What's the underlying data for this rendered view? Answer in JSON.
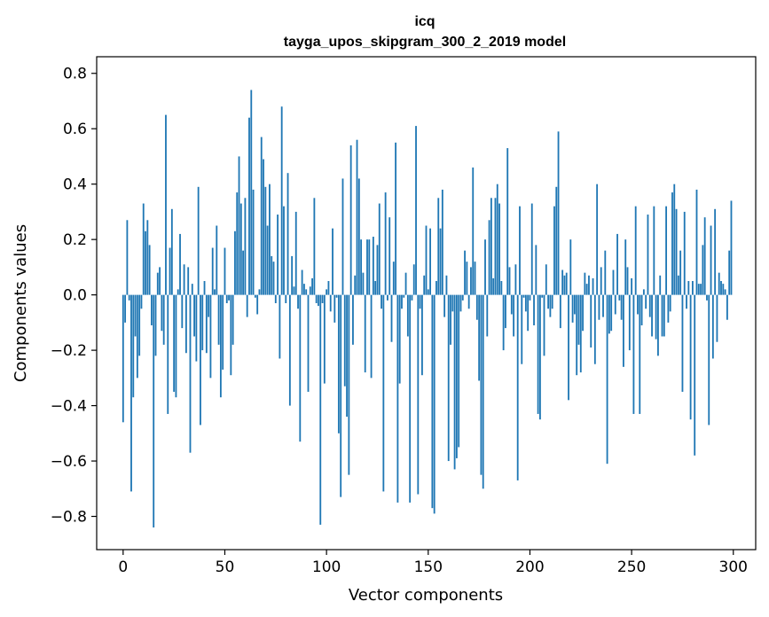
{
  "chart_data": {
    "type": "bar",
    "title": "icq",
    "subtitle": "tayga_upos_skipgram_300_2_2019 model",
    "xlabel": "Vector components",
    "ylabel": "Components values",
    "xlim": [
      -13,
      311
    ],
    "ylim": [
      -0.92,
      0.86
    ],
    "xticks": [
      0,
      50,
      100,
      150,
      200,
      250,
      300
    ],
    "xtick_labels": [
      "0",
      "50",
      "100",
      "150",
      "200",
      "250",
      "300"
    ],
    "yticks": [
      -0.8,
      -0.6,
      -0.4,
      -0.2,
      0.0,
      0.2,
      0.4,
      0.6,
      0.8
    ],
    "ytick_labels": [
      "−0.8",
      "−0.6",
      "−0.4",
      "−0.2",
      "0.0",
      "0.2",
      "0.4",
      "0.6",
      "0.8"
    ],
    "bar_color": "#1f77b4",
    "values": [
      -0.46,
      -0.1,
      0.27,
      -0.02,
      -0.71,
      -0.37,
      -0.15,
      -0.3,
      -0.22,
      -0.05,
      0.33,
      0.23,
      0.27,
      0.18,
      -0.11,
      -0.84,
      -0.22,
      0.08,
      0.1,
      -0.13,
      -0.18,
      0.65,
      -0.43,
      0.17,
      0.31,
      -0.35,
      -0.37,
      0.02,
      0.22,
      -0.12,
      0.11,
      -0.21,
      0.1,
      -0.57,
      0.04,
      -0.15,
      -0.24,
      0.39,
      -0.47,
      -0.2,
      0.05,
      -0.21,
      -0.08,
      -0.3,
      0.17,
      0.02,
      0.25,
      -0.18,
      -0.37,
      -0.27,
      0.17,
      -0.03,
      -0.02,
      -0.29,
      -0.18,
      0.23,
      0.37,
      0.5,
      0.33,
      0.16,
      0.35,
      -0.08,
      0.64,
      0.74,
      0.38,
      -0.01,
      -0.07,
      0.02,
      0.57,
      0.49,
      0.39,
      0.25,
      0.4,
      0.14,
      0.12,
      -0.03,
      0.29,
      -0.23,
      0.68,
      0.32,
      -0.03,
      0.44,
      -0.4,
      0.14,
      0.03,
      0.3,
      -0.05,
      -0.53,
      0.09,
      0.04,
      0.02,
      -0.35,
      0.03,
      0.06,
      0.35,
      -0.03,
      -0.04,
      -0.83,
      -0.03,
      -0.32,
      0.02,
      0.05,
      -0.06,
      0.24,
      -0.1,
      -0.01,
      -0.5,
      -0.73,
      0.42,
      -0.33,
      -0.44,
      -0.65,
      0.54,
      -0.18,
      0.07,
      0.56,
      0.42,
      0.2,
      0.08,
      -0.28,
      0.2,
      0.2,
      -0.3,
      0.21,
      0.05,
      0.18,
      0.33,
      -0.05,
      -0.71,
      0.37,
      -0.02,
      0.28,
      -0.17,
      0.12,
      0.55,
      -0.75,
      -0.32,
      -0.05,
      -0.01,
      0.08,
      -0.15,
      -0.75,
      -0.02,
      0.11,
      0.61,
      -0.72,
      -0.05,
      -0.29,
      0.07,
      0.25,
      0.02,
      0.24,
      -0.77,
      -0.79,
      0.05,
      0.35,
      0.24,
      0.38,
      -0.08,
      0.07,
      -0.6,
      -0.18,
      -0.06,
      -0.63,
      -0.59,
      -0.55,
      -0.06,
      -0.02,
      0.16,
      0.12,
      -0.05,
      0.1,
      0.46,
      0.12,
      -0.09,
      -0.31,
      -0.65,
      -0.7,
      0.2,
      -0.15,
      0.27,
      0.35,
      0.06,
      0.35,
      0.4,
      0.33,
      0.05,
      -0.2,
      -0.12,
      0.53,
      0.1,
      -0.07,
      -0.15,
      0.11,
      -0.67,
      0.32,
      -0.25,
      -0.01,
      -0.06,
      -0.13,
      -0.02,
      0.33,
      -0.11,
      0.18,
      -0.43,
      -0.45,
      -0.01,
      -0.22,
      0.11,
      -0.05,
      -0.08,
      -0.05,
      0.32,
      0.39,
      0.59,
      -0.12,
      0.09,
      0.07,
      0.08,
      -0.38,
      0.2,
      -0.1,
      -0.07,
      -0.29,
      -0.18,
      -0.28,
      -0.13,
      0.08,
      0.04,
      0.07,
      -0.19,
      0.06,
      -0.25,
      0.4,
      -0.09,
      0.1,
      -0.08,
      0.16,
      -0.61,
      -0.14,
      -0.13,
      0.09,
      -0.07,
      0.22,
      -0.02,
      -0.09,
      -0.26,
      0.2,
      0.1,
      -0.2,
      0.06,
      -0.43,
      0.32,
      -0.07,
      -0.43,
      -0.11,
      0.02,
      -0.05,
      0.29,
      -0.08,
      -0.15,
      0.32,
      -0.16,
      -0.22,
      0.07,
      -0.15,
      -0.15,
      0.32,
      -0.1,
      -0.06,
      0.37,
      0.4,
      0.31,
      0.07,
      0.16,
      -0.35,
      0.3,
      -0.05,
      0.05,
      -0.45,
      0.05,
      -0.58,
      0.38,
      0.04,
      0.04,
      0.18,
      0.28,
      -0.02,
      -0.47,
      0.25,
      -0.23,
      0.31,
      -0.17,
      0.08,
      0.05,
      0.04,
      0.02,
      -0.09,
      0.16,
      0.34
    ]
  }
}
